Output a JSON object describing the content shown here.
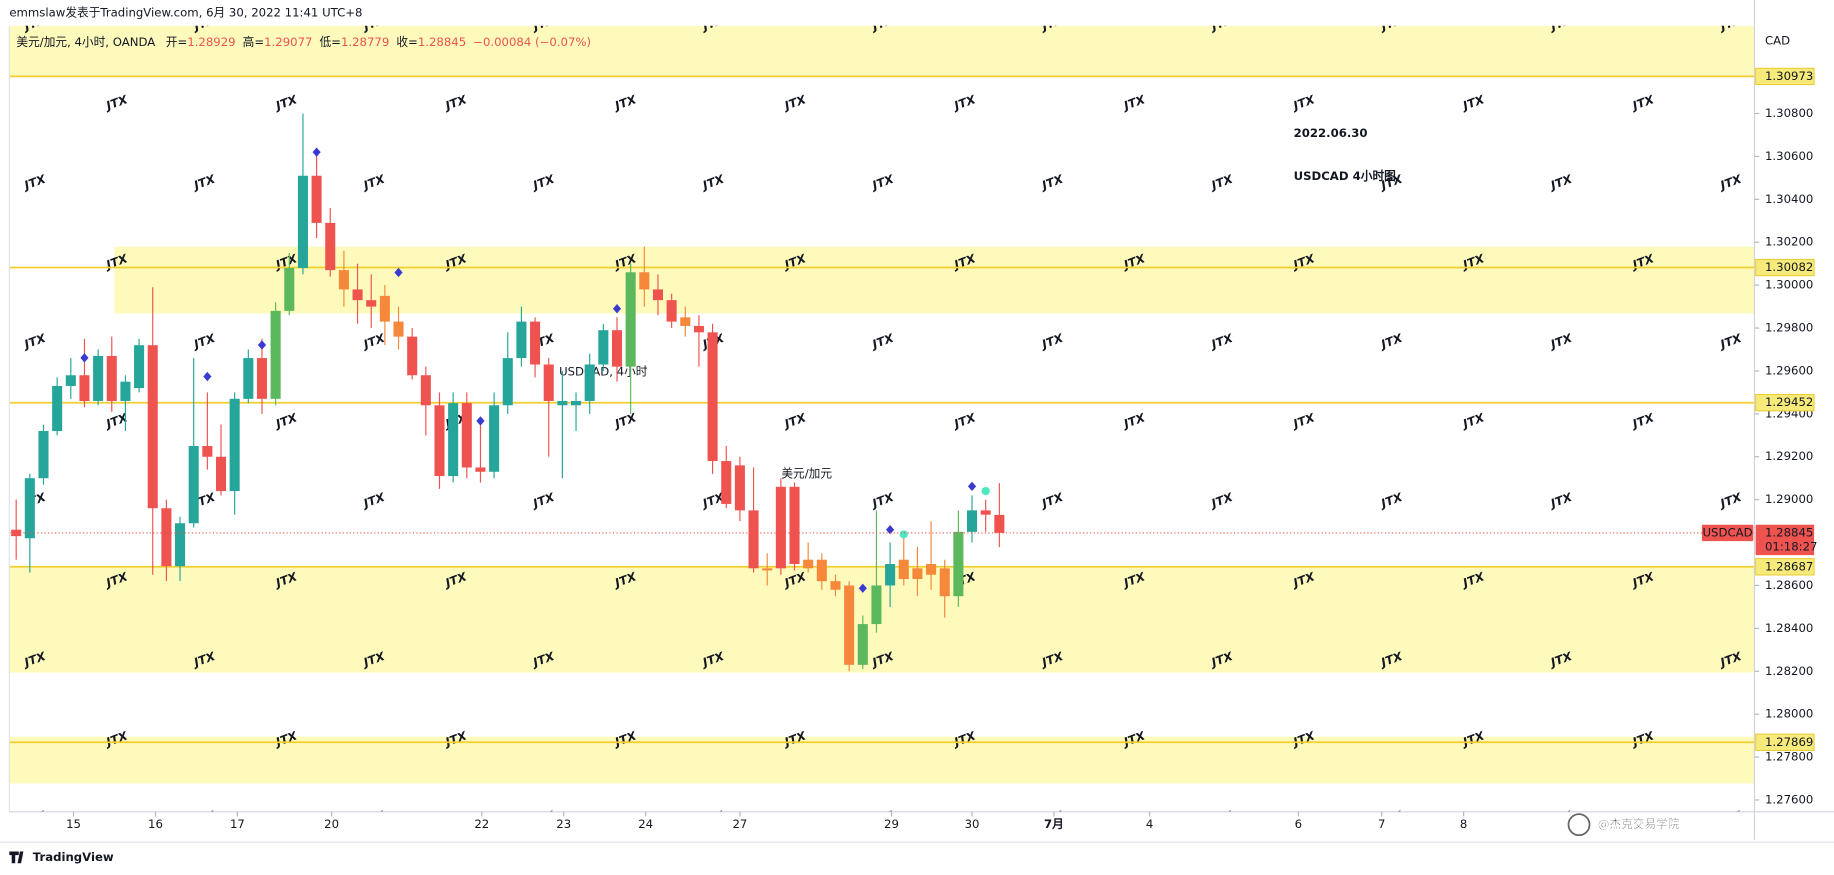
{
  "chart_data": {
    "type": "candlestick",
    "header": "emmslaw发表于TradingView.com, 6月 30, 2022 11:41 UTC+8",
    "legend": {
      "symbol": "美元/加元, 4小时, OANDA",
      "fields": [
        "开=",
        "高=",
        "低=",
        "收="
      ],
      "change": "−0.00084 (−0.07%)"
    },
    "annotations": [
      "2022.06.30",
      "USDCAD 4小时图"
    ],
    "watermark_main": "USDCAD, 4小时",
    "watermark_sub": "美元/加元",
    "watermark": "JTX",
    "credit": "@杰克交易学院",
    "brand": "TradingView",
    "currency": "CAD",
    "symbol_tag": "USDCAD",
    "countdown": "01:18:27",
    "open": [
      1.2886,
      1.2882,
      1.291,
      1.2932,
      1.2953,
      1.2958,
      1.2946,
      1.2967,
      1.2946,
      1.2952,
      1.2972,
      1.2896,
      1.2869,
      1.2889,
      1.2925,
      1.292,
      1.2904,
      1.2947,
      1.2966,
      1.2947,
      1.2988,
      1.3008,
      1.3051,
      1.3029,
      1.3007,
      1.2998,
      1.2993,
      1.2995,
      1.2983,
      1.2976,
      1.2958,
      1.2944,
      1.2911,
      1.2945,
      1.2915,
      1.2913,
      1.2944,
      1.2966,
      1.2983,
      1.2963,
      1.2944,
      1.2944,
      1.2946,
      1.2963,
      1.2979,
      1.2962,
      1.3006,
      1.2998,
      1.2993,
      1.2985,
      1.2981,
      1.2978,
      1.2918,
      1.2916,
      1.2895,
      1.2868,
      1.2906,
      1.2906,
      1.2872,
      1.2872,
      1.2862,
      1.286,
      1.2823,
      1.2842,
      1.286,
      1.2872,
      1.2868,
      1.287,
      1.2868,
      1.2855,
      1.2885,
      1.2895,
      1.28929
    ],
    "high": [
      1.29,
      1.2912,
      1.2935,
      1.2957,
      1.2966,
      1.2975,
      1.297,
      1.2976,
      1.2958,
      1.2975,
      1.2999,
      1.29,
      1.2892,
      1.2966,
      1.295,
      1.2935,
      1.295,
      1.297,
      1.2975,
      1.2992,
      1.3015,
      1.308,
      1.3064,
      1.3036,
      1.3016,
      1.301,
      1.3005,
      1.3,
      1.299,
      1.298,
      1.2962,
      1.295,
      1.295,
      1.295,
      1.2935,
      1.295,
      1.2978,
      1.299,
      1.2985,
      1.2966,
      1.296,
      1.295,
      1.2968,
      1.2982,
      1.2985,
      1.301,
      1.3018,
      1.3005,
      1.2996,
      1.299,
      1.2986,
      1.2982,
      1.2925,
      1.292,
      1.2915,
      1.2875,
      1.291,
      1.2908,
      1.288,
      1.2875,
      1.2865,
      1.2862,
      1.2846,
      1.2895,
      1.288,
      1.2883,
      1.2878,
      1.289,
      1.2872,
      1.2895,
      1.2902,
      1.29,
      1.29077
    ],
    "low": [
      1.2872,
      1.2866,
      1.2907,
      1.293,
      1.2947,
      1.2943,
      1.2944,
      1.2941,
      1.2932,
      1.295,
      1.2865,
      1.2862,
      1.2862,
      1.2887,
      1.2914,
      1.2902,
      1.2893,
      1.2945,
      1.294,
      1.2944,
      1.2986,
      1.3005,
      1.3022,
      1.3004,
      1.299,
      1.2982,
      1.298,
      1.2972,
      1.297,
      1.2956,
      1.293,
      1.2905,
      1.2908,
      1.291,
      1.2908,
      1.291,
      1.294,
      1.2962,
      1.2957,
      1.292,
      1.291,
      1.2932,
      1.294,
      1.296,
      1.2955,
      1.294,
      1.299,
      1.2986,
      1.298,
      1.2976,
      1.2962,
      1.2912,
      1.2896,
      1.289,
      1.2866,
      1.286,
      1.2865,
      1.2867,
      1.2866,
      1.2858,
      1.2855,
      1.282,
      1.2821,
      1.2838,
      1.285,
      1.286,
      1.2855,
      1.2858,
      1.2845,
      1.285,
      1.288,
      1.2885,
      1.28779
    ],
    "close": [
      1.2883,
      1.291,
      1.2932,
      1.2953,
      1.2958,
      1.2946,
      1.2967,
      1.2946,
      1.2955,
      1.2972,
      1.2896,
      1.2869,
      1.2889,
      1.2925,
      1.292,
      1.2904,
      1.2947,
      1.2966,
      1.2947,
      1.2988,
      1.3008,
      1.3051,
      1.3029,
      1.3007,
      1.2998,
      1.2993,
      1.299,
      1.2983,
      1.2976,
      1.2958,
      1.2944,
      1.2911,
      1.2945,
      1.2915,
      1.2913,
      1.2944,
      1.2966,
      1.2983,
      1.2963,
      1.2946,
      1.2946,
      1.2946,
      1.2963,
      1.2979,
      1.2962,
      1.3006,
      1.2998,
      1.2993,
      1.2983,
      1.2981,
      1.2978,
      1.2918,
      1.2898,
      1.2895,
      1.2868,
      1.2867,
      1.2868,
      1.287,
      1.2868,
      1.2862,
      1.2858,
      1.2823,
      1.2842,
      1.286,
      1.287,
      1.2863,
      1.2863,
      1.2865,
      1.2855,
      1.2885,
      1.2895,
      1.2893,
      1.28845
    ],
    "colors": [
      "#ef5350",
      "#26a69a",
      "#26a69a",
      "#26a69a",
      "#26a69a",
      "#ef5350",
      "#26a69a",
      "#ef5350",
      "#26a69a",
      "#26a69a",
      "#ef5350",
      "#ef5350",
      "#26a69a",
      "#26a69a",
      "#ef5350",
      "#ef5350",
      "#26a69a",
      "#26a69a",
      "#ef5350",
      "#5cb85c",
      "#5cb85c",
      "#26a69a",
      "#ef5350",
      "#ef5350",
      "#f5883a",
      "#ef5350",
      "#ef5350",
      "#f5883a",
      "#f5883a",
      "#ef5350",
      "#ef5350",
      "#ef5350",
      "#26a69a",
      "#ef5350",
      "#ef5350",
      "#26a69a",
      "#26a69a",
      "#26a69a",
      "#ef5350",
      "#ef5350",
      "#26a69a",
      "#26a69a",
      "#26a69a",
      "#26a69a",
      "#ef5350",
      "#5cb85c",
      "#f5883a",
      "#ef5350",
      "#ef5350",
      "#f5883a",
      "#ef5350",
      "#ef5350",
      "#ef5350",
      "#ef5350",
      "#ef5350",
      "#f5883a",
      "#ef5350",
      "#ef5350",
      "#f5883a",
      "#f5883a",
      "#f5883a",
      "#f5883a",
      "#5cb85c",
      "#5cb85c",
      "#26a69a",
      "#f5883a",
      "#f5883a",
      "#f5883a",
      "#f5883a",
      "#5cb85c",
      "#26a69a",
      "#ef5350",
      "#ef5350"
    ],
    "diamonds": {
      "color": "#3a3ad0",
      "x": [
        5,
        14,
        18,
        22,
        28,
        34,
        44,
        62,
        64,
        70
      ],
      "y": [
        1.29661,
        1.29574,
        1.29721,
        1.3062,
        1.30059,
        1.29367,
        1.2989,
        1.28587,
        1.2886,
        1.29062
      ]
    },
    "dots": {
      "color": "#4de8c0",
      "x": [
        65,
        71
      ],
      "y": [
        1.28838,
        1.2904
      ]
    },
    "levels": [
      1.30973,
      1.30082,
      1.29452,
      1.28687,
      1.27869
    ],
    "zones": [
      {
        "start": -0.5,
        "low": 1.30974,
        "high": 1.31209
      },
      {
        "start": 7.2,
        "low": 1.29868,
        "high": 1.30179
      },
      {
        "start": -0.5,
        "low": 1.28194,
        "high": 1.2869
      },
      {
        "start": -0.5,
        "low": 1.27677,
        "high": 1.27895
      }
    ],
    "xlim": [
      -0.5,
      127.3
    ],
    "ylim": [
      1.27545,
      1.31209
    ],
    "xticks": [
      {
        "value": 4.2,
        "label": "15"
      },
      {
        "value": 10.2,
        "label": "16"
      },
      {
        "value": 16.2,
        "label": "17"
      },
      {
        "value": 23.1,
        "label": "20"
      },
      {
        "value": 34.1,
        "label": "22"
      },
      {
        "value": 40.1,
        "label": "23"
      },
      {
        "value": 46.1,
        "label": "24"
      },
      {
        "value": 53.0,
        "label": "27"
      },
      {
        "value": 64.1,
        "label": "29"
      },
      {
        "value": 70.0,
        "label": "30"
      },
      {
        "value": 76.0,
        "label": "7月"
      },
      {
        "value": 83.0,
        "label": "4"
      },
      {
        "value": 93.9,
        "label": "6"
      },
      {
        "value": 100.0,
        "label": "7"
      },
      {
        "value": 106.0,
        "label": "8"
      }
    ],
    "yticks": [
      {
        "value": 1.276,
        "label": "1.27600"
      },
      {
        "value": 1.278,
        "label": "1.27800"
      },
      {
        "value": 1.28,
        "label": "1.28000"
      },
      {
        "value": 1.282,
        "label": "1.28200"
      },
      {
        "value": 1.284,
        "label": "1.28400"
      },
      {
        "value": 1.286,
        "label": "1.28600"
      },
      {
        "value": 1.29,
        "label": "1.29000"
      },
      {
        "value": 1.292,
        "label": "1.29200"
      },
      {
        "value": 1.294,
        "label": "1.29400"
      },
      {
        "value": 1.296,
        "label": "1.29600"
      },
      {
        "value": 1.298,
        "label": "1.29800"
      },
      {
        "value": 1.3,
        "label": "1.30000"
      },
      {
        "value": 1.302,
        "label": "1.30200"
      },
      {
        "value": 1.304,
        "label": "1.30400"
      },
      {
        "value": 1.306,
        "label": "1.30600"
      },
      {
        "value": 1.308,
        "label": "1.30800"
      }
    ],
    "grid": false
  }
}
